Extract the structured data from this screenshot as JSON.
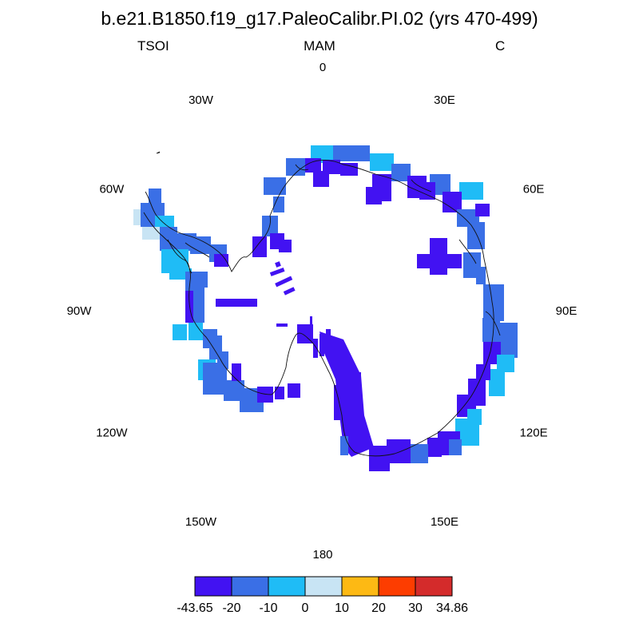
{
  "header": {
    "title": "b.e21.B1850.f19_g17.PaleoCalibr.PI.02 (yrs 470-499)",
    "left": "TSOI",
    "center": "MAM",
    "right": "C"
  },
  "map": {
    "projection": "south-polar-stereographic",
    "lon_labels": [
      {
        "lon": 0,
        "text": "0"
      },
      {
        "lon": 30,
        "text": "30E"
      },
      {
        "lon": 60,
        "text": "60E"
      },
      {
        "lon": 90,
        "text": "90E"
      },
      {
        "lon": 120,
        "text": "120E"
      },
      {
        "lon": 150,
        "text": "150E"
      },
      {
        "lon": 180,
        "text": "180"
      },
      {
        "lon": -150,
        "text": "150W"
      },
      {
        "lon": -120,
        "text": "120W"
      },
      {
        "lon": -90,
        "text": "90W"
      },
      {
        "lon": -60,
        "text": "60W"
      },
      {
        "lon": -30,
        "text": "30W"
      }
    ],
    "colorbar": {
      "colors": [
        "#4212f2",
        "#3a6fe6",
        "#1fbcf6",
        "#c8e4f4",
        "#fdb914",
        "#fd3d00",
        "#d42b2b"
      ],
      "labels": [
        "-43.65",
        "-20",
        "-10",
        "0",
        "10",
        "20",
        "30",
        "34.86"
      ]
    }
  }
}
